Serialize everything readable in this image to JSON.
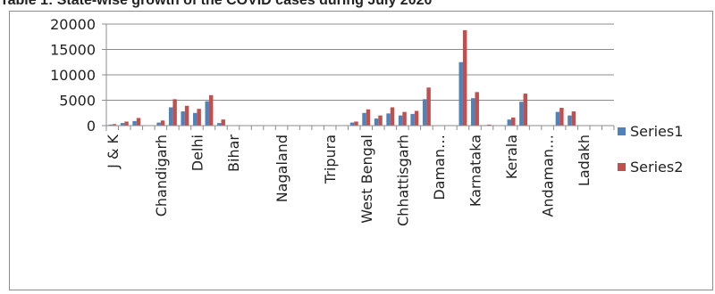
{
  "chart_data": {
    "type": "bar",
    "title": "Table 1: State-wise growth of the COVID cases during July 2020",
    "xlabel": "",
    "ylabel": "",
    "ylim": [
      0,
      20000
    ],
    "yticks": [
      0,
      5000,
      10000,
      15000,
      20000
    ],
    "grid": true,
    "legend": "right",
    "categories": [
      "J & K",
      "",
      "",
      "",
      "Chandigarh",
      "",
      "",
      "Delhi",
      "",
      "",
      "Bihar",
      "",
      "",
      "",
      "Nagaland",
      "",
      "",
      "",
      "Tripura",
      "",
      "",
      "West Bengal",
      "",
      "",
      "Chhattisgarh",
      "",
      "",
      "Daman…",
      "",
      "",
      "Karnataka",
      "",
      "",
      "Kerala",
      "",
      "",
      "Andaman…",
      "",
      "",
      "Ladakh",
      "",
      ""
    ],
    "series": [
      {
        "name": "Series1",
        "color": "#4F81BD",
        "values": [
          200,
          500,
          900,
          0,
          600,
          3600,
          2800,
          2500,
          4800,
          500,
          0,
          0,
          0,
          0,
          0,
          0,
          0,
          0,
          0,
          0,
          600,
          2500,
          1400,
          2400,
          2000,
          2300,
          5200,
          0,
          0,
          12500,
          5400,
          100,
          0,
          1200,
          4700,
          0,
          0,
          2700,
          2000,
          0,
          0,
          0
        ]
      },
      {
        "name": "Series2",
        "color": "#C0504D",
        "values": [
          300,
          800,
          1500,
          0,
          1000,
          5200,
          3900,
          3300,
          6000,
          1200,
          0,
          0,
          0,
          0,
          0,
          0,
          0,
          0,
          0,
          0,
          800,
          3200,
          2000,
          3600,
          2700,
          2900,
          7500,
          0,
          0,
          18800,
          6600,
          200,
          0,
          1600,
          6300,
          0,
          0,
          3500,
          2800,
          0,
          0,
          0
        ]
      }
    ]
  }
}
